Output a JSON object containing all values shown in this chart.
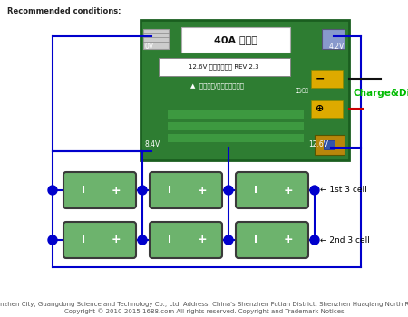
{
  "bg_color": "#ffffff",
  "title_text": "Recommended conditions:",
  "footer_line1": "Shenzhen City, Guangdong Science and Technology Co., Ltd. Address: China's Shenzhen Futian District, Shenzhen Huaqiang North Road",
  "footer_line2": "Copyright © 2010-2015 1688.com All rights reserved. Copyright and Trademark Notices",
  "footer_fontsize": 5.0,
  "board_color": "#2e7d32",
  "board_edge_color": "#1a5e1f",
  "board_label_0v": "0V",
  "board_label_4v2": "4.2V",
  "board_label_84v": "8.4V",
  "board_label_126v": "12.6V",
  "charge_label": "Charge&Discharge",
  "charge_label_color": "#00bb00",
  "label_1st": "← 1st 3 cell",
  "label_2nd": "← 2nd 3 cell",
  "cell_color": "#6db36d",
  "cell_border_color": "#3a3a3a",
  "wire_color": "#0000cc",
  "black_wire_color": "#111111",
  "red_wire_color": "#cc0000",
  "dot_color": "#0000cc"
}
